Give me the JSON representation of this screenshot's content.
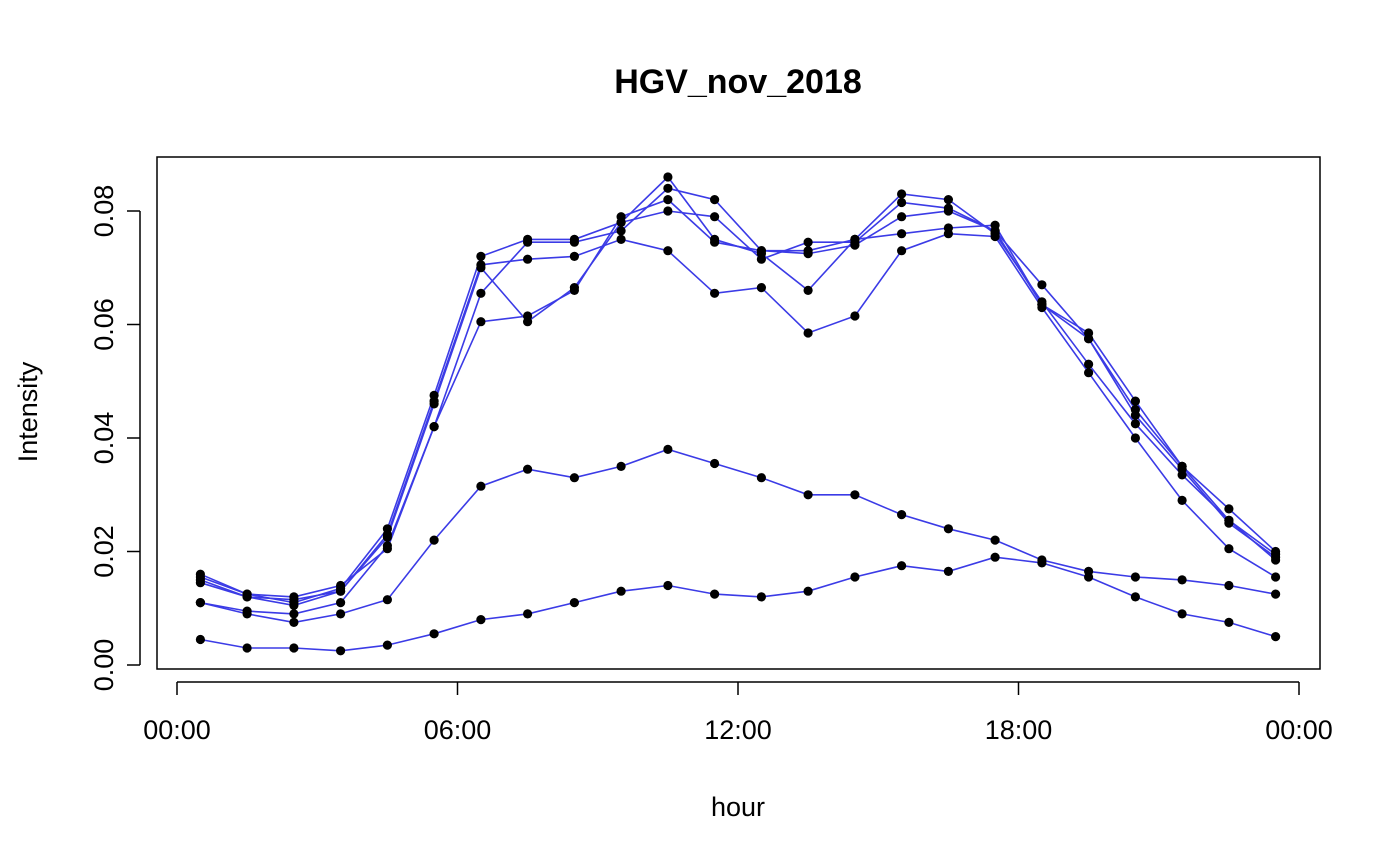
{
  "chart_data": {
    "type": "line",
    "title": "HGV_nov_2018",
    "xlabel": "hour",
    "ylabel": "Intensity",
    "x_ticks": [
      "00:00",
      "06:00",
      "12:00",
      "18:00",
      "00:00"
    ],
    "y_ticks": [
      "0.00",
      "0.02",
      "0.04",
      "0.06",
      "0.08"
    ],
    "xlim": [
      "00:00",
      "24:00"
    ],
    "ylim": [
      0,
      0.088
    ],
    "line_color": "#3b3be6",
    "point_color": "#000000",
    "x": [
      "00:30",
      "01:30",
      "02:30",
      "03:30",
      "04:30",
      "05:30",
      "06:30",
      "07:30",
      "08:30",
      "09:30",
      "10:30",
      "11:30",
      "12:30",
      "13:30",
      "14:30",
      "15:30",
      "16:30",
      "17:30",
      "18:30",
      "19:30",
      "20:30",
      "21:30",
      "22:30",
      "23:30"
    ],
    "series": [
      {
        "values": [
          0.015,
          0.012,
          0.0105,
          0.013,
          0.023,
          0.0465,
          0.0705,
          0.0715,
          0.072,
          0.075,
          0.073,
          0.0655,
          0.0665,
          0.0585,
          0.0615,
          0.073,
          0.076,
          0.0755,
          0.063,
          0.0515,
          0.04,
          0.029,
          0.0205,
          0.0155
        ]
      },
      {
        "values": [
          0.016,
          0.0125,
          0.011,
          0.0135,
          0.024,
          0.0475,
          0.072,
          0.075,
          0.075,
          0.078,
          0.086,
          0.075,
          0.0725,
          0.066,
          0.075,
          0.083,
          0.082,
          0.076,
          0.064,
          0.053,
          0.0425,
          0.0335,
          0.0255,
          0.0185
        ]
      },
      {
        "values": [
          0.0145,
          0.012,
          0.0115,
          0.013,
          0.0225,
          0.046,
          0.07,
          0.0605,
          0.0665,
          0.078,
          0.08,
          0.079,
          0.0715,
          0.0745,
          0.0745,
          0.0815,
          0.0805,
          0.0765,
          0.067,
          0.0575,
          0.044,
          0.0345,
          0.025,
          0.019
        ]
      },
      {
        "values": [
          0.0155,
          0.0125,
          0.012,
          0.014,
          0.0205,
          0.042,
          0.0605,
          0.0615,
          0.066,
          0.079,
          0.082,
          0.0745,
          0.073,
          0.0725,
          0.074,
          0.079,
          0.08,
          0.0765,
          0.0635,
          0.0585,
          0.0465,
          0.035,
          0.0275,
          0.02
        ]
      },
      {
        "values": [
          0.011,
          0.0095,
          0.009,
          0.011,
          0.021,
          0.042,
          0.0655,
          0.0745,
          0.0745,
          0.0765,
          0.084,
          0.082,
          0.073,
          0.073,
          0.075,
          0.076,
          0.077,
          0.0775,
          0.0635,
          0.0575,
          0.045,
          0.035,
          0.0255,
          0.0195
        ]
      },
      {
        "values": [
          0.011,
          0.009,
          0.0075,
          0.009,
          0.0115,
          0.022,
          0.0315,
          0.0345,
          0.033,
          0.035,
          0.038,
          0.0355,
          0.033,
          0.03,
          0.03,
          0.0265,
          0.024,
          0.022,
          0.0185,
          0.0165,
          0.0155,
          0.015,
          0.014,
          0.0125
        ]
      },
      {
        "values": [
          0.0045,
          0.003,
          0.003,
          0.0025,
          0.0035,
          0.0055,
          0.008,
          0.009,
          0.011,
          0.013,
          0.014,
          0.0125,
          0.012,
          0.013,
          0.0155,
          0.0175,
          0.0165,
          0.019,
          0.018,
          0.0155,
          0.012,
          0.009,
          0.0075,
          0.005
        ]
      }
    ]
  }
}
